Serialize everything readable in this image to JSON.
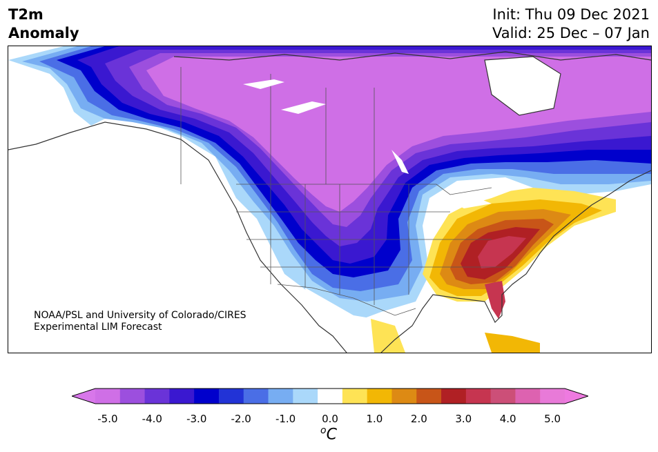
{
  "title": {
    "line1": "T2m",
    "line2": "Anomaly"
  },
  "init": {
    "line1": "Init: Thu 09 Dec 2021",
    "line2": "Valid: 25 Dec – 07 Jan"
  },
  "credit": {
    "line1": "NOAA/PSL and University of Colorado/CIRES",
    "line2": "Experimental LIM Forecast"
  },
  "colorbar": {
    "ticks": [
      "-5.0",
      "-4.0",
      "-3.0",
      "-2.0",
      "-1.0",
      "0.0",
      "1.0",
      "2.0",
      "3.0",
      "4.0",
      "5.0"
    ],
    "unit_sup": "o",
    "unit": "C",
    "colors": [
      "#cf6fe6",
      "#9c4fde",
      "#6a33d8",
      "#3a18d0",
      "#0000cc",
      "#2233d6",
      "#4a6ee6",
      "#77adf2",
      "#aad8fa",
      "#ffffff",
      "#fee355",
      "#f2b705",
      "#dd8a14",
      "#c85518",
      "#b02024",
      "#c63550",
      "#cc4f78",
      "#dd62b0",
      "#e87ad8"
    ],
    "under_color": "#d877ea",
    "over_color": "#ee7ae0"
  }
}
